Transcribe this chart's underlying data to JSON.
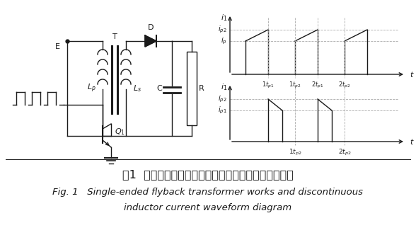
{
  "title_cn": "图1  单端反激变压器工作原理和电感电流断续波形简图",
  "title_en1": "Fig. 1   Single-ended flyback transformer works and discontinuous",
  "title_en2": "inductor current waveform diagram",
  "bg_color": "#ffffff",
  "line_color": "#1a1a1a",
  "gray_dashed": "#aaaaaa",
  "fig_width": 5.88,
  "fig_height": 3.56,
  "dpi": 100
}
